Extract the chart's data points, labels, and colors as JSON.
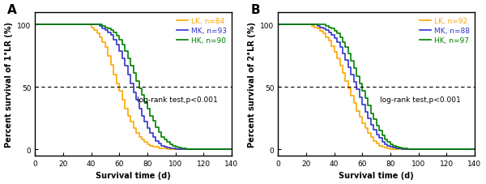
{
  "panel_A": {
    "label": "A",
    "ylabel": "Percent survival of 1°LR (%)",
    "xlabel": "Survival time (d)",
    "xlim": [
      0,
      140
    ],
    "ylim": [
      -5,
      110
    ],
    "xticks": [
      0,
      20,
      40,
      60,
      80,
      100,
      120,
      140
    ],
    "yticks": [
      0,
      50,
      100
    ],
    "hline_y": 50,
    "annotation": "log-rank test,p<0.001",
    "legend_entries": [
      {
        "label": "LK, n=84",
        "color": "#FFA500"
      },
      {
        "label": "MK, n=93",
        "color": "#3333CC"
      },
      {
        "label": "HK, n=90",
        "color": "#008000"
      }
    ],
    "curves": {
      "LK": {
        "color": "#FFA500",
        "x": [
          0,
          38,
          40,
          42,
          44,
          46,
          48,
          50,
          52,
          54,
          56,
          58,
          60,
          62,
          64,
          66,
          68,
          70,
          72,
          74,
          76,
          78,
          80,
          82,
          84,
          86,
          88,
          90,
          92,
          94,
          96,
          98,
          100,
          102,
          104,
          106,
          108,
          110,
          140
        ],
        "y": [
          100,
          100,
          98,
          96,
          93,
          90,
          86,
          82,
          75,
          68,
          60,
          53,
          47,
          40,
          33,
          27,
          22,
          17,
          13,
          10,
          8,
          6,
          4,
          3,
          2,
          2,
          1,
          1,
          1,
          0.5,
          0.3,
          0.2,
          0.1,
          0,
          0,
          0,
          0,
          0,
          0
        ]
      },
      "MK": {
        "color": "#3333CC",
        "x": [
          0,
          44,
          46,
          48,
          50,
          52,
          54,
          56,
          58,
          60,
          62,
          64,
          66,
          68,
          70,
          72,
          74,
          76,
          78,
          80,
          82,
          84,
          86,
          88,
          90,
          92,
          94,
          96,
          98,
          100,
          102,
          104,
          106,
          108,
          110,
          112,
          114,
          116,
          118,
          120,
          140
        ],
        "y": [
          100,
          100,
          99,
          97,
          96,
          94,
          92,
          88,
          84,
          79,
          73,
          67,
          60,
          53,
          46,
          40,
          33,
          27,
          22,
          17,
          13,
          10,
          7,
          5,
          3,
          2,
          1.5,
          1,
          0.8,
          0.5,
          0.3,
          0.2,
          0.1,
          0,
          0,
          0,
          0,
          0,
          0,
          0,
          0
        ]
      },
      "HK": {
        "color": "#008000",
        "x": [
          0,
          46,
          48,
          50,
          52,
          54,
          56,
          58,
          60,
          62,
          64,
          66,
          68,
          70,
          72,
          74,
          76,
          78,
          80,
          82,
          84,
          86,
          88,
          90,
          92,
          94,
          96,
          98,
          100,
          102,
          104,
          106,
          108,
          110,
          112,
          114,
          116,
          118,
          120,
          122,
          124,
          126,
          128,
          130,
          140
        ],
        "y": [
          100,
          100,
          99,
          98,
          97,
          96,
          94,
          91,
          88,
          84,
          79,
          73,
          67,
          61,
          55,
          49,
          44,
          38,
          33,
          27,
          23,
          18,
          14,
          10,
          8,
          6,
          4,
          3,
          2,
          1.5,
          1,
          0.8,
          0.5,
          0.3,
          0.2,
          0.1,
          0,
          0,
          0,
          0,
          0,
          0,
          0,
          0,
          0
        ]
      }
    }
  },
  "panel_B": {
    "label": "B",
    "ylabel": "Percent survival of 2°LR (%)",
    "xlabel": "Survival time (d)",
    "xlim": [
      0,
      140
    ],
    "ylim": [
      -5,
      110
    ],
    "xticks": [
      0,
      20,
      40,
      60,
      80,
      100,
      120,
      140
    ],
    "yticks": [
      0,
      50,
      100
    ],
    "hline_y": 50,
    "annotation": "log-rank test,p<0.001",
    "legend_entries": [
      {
        "label": "LK, n=92",
        "color": "#FFA500"
      },
      {
        "label": "MK, n=88",
        "color": "#3333CC"
      },
      {
        "label": "HK, n=97",
        "color": "#008000"
      }
    ],
    "curves": {
      "LK": {
        "color": "#FFA500",
        "x": [
          0,
          22,
          24,
          26,
          28,
          30,
          32,
          34,
          36,
          38,
          40,
          42,
          44,
          46,
          48,
          50,
          52,
          54,
          56,
          58,
          60,
          62,
          64,
          66,
          68,
          70,
          72,
          74,
          76,
          78,
          80,
          82,
          84,
          86,
          88,
          90,
          92,
          94,
          96,
          98,
          100,
          102,
          140
        ],
        "y": [
          100,
          100,
          99,
          98,
          97,
          95,
          93,
          90,
          87,
          83,
          78,
          73,
          67,
          61,
          55,
          49,
          43,
          37,
          31,
          26,
          21,
          17,
          13,
          10,
          7,
          5,
          3,
          2,
          1.5,
          1,
          0.5,
          0.3,
          0.1,
          0,
          0,
          0,
          0,
          0,
          0,
          0,
          0,
          0,
          0
        ]
      },
      "MK": {
        "color": "#3333CC",
        "x": [
          0,
          26,
          28,
          30,
          32,
          34,
          36,
          38,
          40,
          42,
          44,
          46,
          48,
          50,
          52,
          54,
          56,
          58,
          60,
          62,
          64,
          66,
          68,
          70,
          72,
          74,
          76,
          78,
          80,
          82,
          84,
          86,
          88,
          90,
          92,
          94,
          96,
          98,
          100,
          102,
          104,
          106,
          108,
          110,
          112,
          114,
          116,
          118,
          120,
          140
        ],
        "y": [
          100,
          100,
          99,
          98,
          97,
          96,
          94,
          92,
          89,
          86,
          82,
          77,
          72,
          66,
          60,
          54,
          48,
          42,
          36,
          30,
          25,
          20,
          16,
          12,
          9,
          6,
          4,
          3,
          2,
          1.5,
          1,
          0.7,
          0.5,
          0.3,
          0.2,
          0.1,
          0,
          0,
          0,
          0,
          0,
          0,
          0,
          0,
          0,
          0,
          0,
          0,
          0,
          0
        ]
      },
      "HK": {
        "color": "#008000",
        "x": [
          0,
          28,
          30,
          32,
          34,
          36,
          38,
          40,
          42,
          44,
          46,
          48,
          50,
          52,
          54,
          56,
          58,
          60,
          62,
          64,
          66,
          68,
          70,
          72,
          74,
          76,
          78,
          80,
          82,
          84,
          86,
          88,
          90,
          92,
          94,
          96,
          98,
          100,
          102,
          104,
          106,
          108,
          110,
          112,
          114,
          116,
          118,
          120,
          122,
          124,
          140
        ],
        "y": [
          100,
          100,
          100,
          100,
          99,
          98,
          97,
          95,
          93,
          90,
          86,
          82,
          77,
          71,
          65,
          59,
          53,
          47,
          41,
          35,
          29,
          24,
          19,
          15,
          11,
          8,
          6,
          4,
          3,
          2,
          1.5,
          1,
          0.7,
          0.5,
          0.3,
          0.2,
          0.1,
          0,
          0,
          0,
          0,
          0,
          0,
          0,
          0,
          0,
          0,
          0,
          0,
          0,
          0
        ]
      }
    }
  },
  "lw": 1.2,
  "label_fontsize": 7,
  "tick_fontsize": 6.5,
  "legend_fontsize": 6.5,
  "annot_fontsize": 6.5,
  "panel_label_fontsize": 11
}
